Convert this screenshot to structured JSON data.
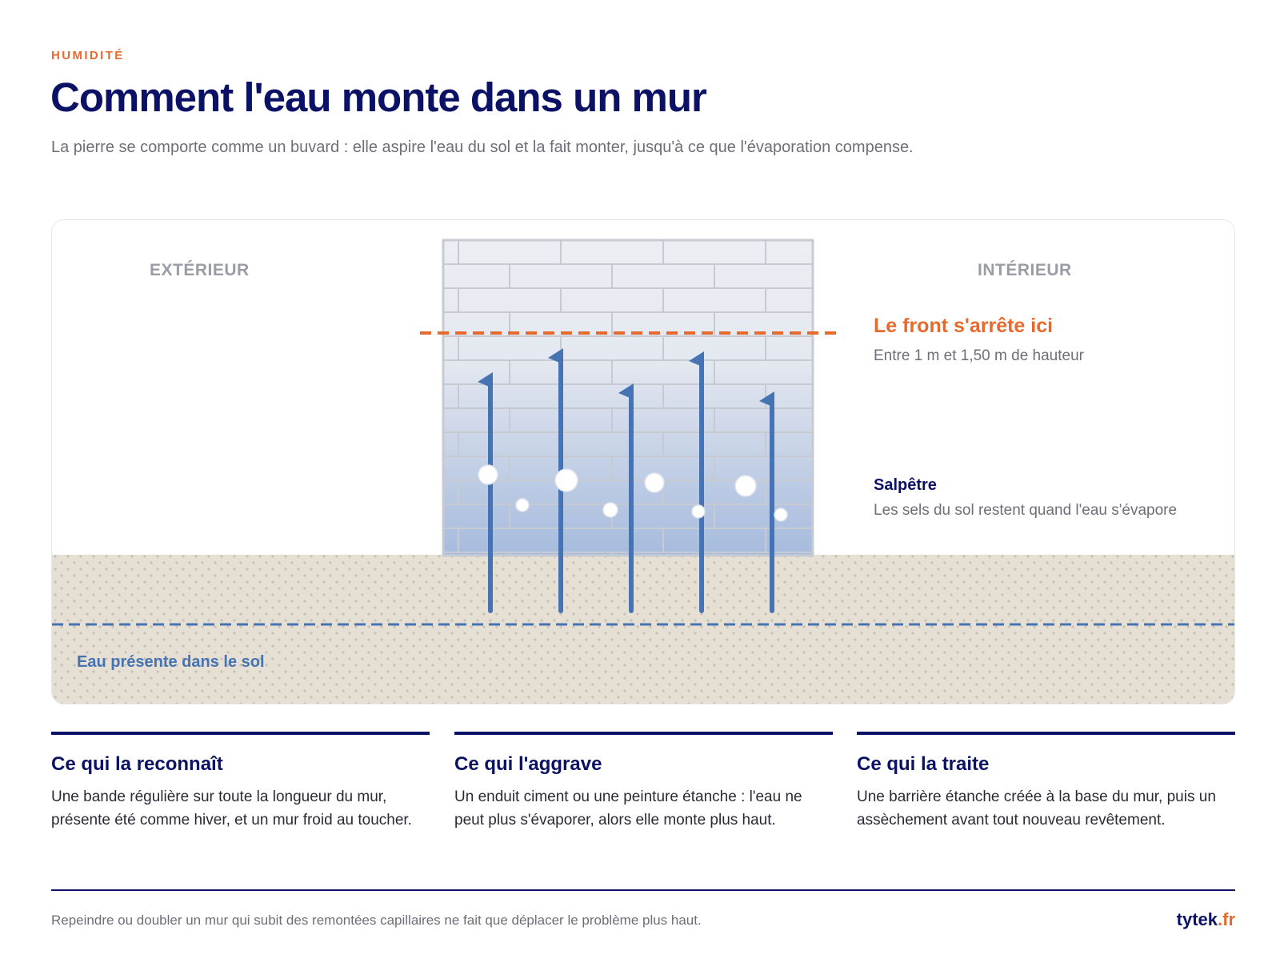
{
  "header": {
    "kicker": "HUMIDITÉ",
    "title": "Comment l'eau monte dans un mur",
    "subtitle": "La pierre se comporte comme un buvard : elle aspire l'eau du sol et la fait monter, jusqu'à ce que l'évaporation compense."
  },
  "diagram": {
    "exterior_label": "EXTÉRIEUR",
    "interior_label": "INTÉRIEUR",
    "front_title": "Le front s'arrête ici",
    "front_subtitle": "Entre 1 m et 1,50 m de hauteur",
    "salt_title": "Salpêtre",
    "salt_subtitle": "Les sels du sol restent quand l'eau s'évapore",
    "ground_water_label": "Eau présente dans le sol",
    "colors": {
      "front_line": "#e8692e",
      "water_arrow": "#4673b3",
      "ground": "#e6e0d4",
      "brick_line": "#c8cad2"
    }
  },
  "columns": [
    {
      "title": "Ce qui la reconnaît",
      "text": "Une bande régulière sur toute la longueur du mur, présente été comme hiver, et un mur froid au toucher."
    },
    {
      "title": "Ce qui l'aggrave",
      "text": "Un enduit ciment ou une peinture étanche : l'eau ne peut plus s'évaporer, alors elle monte plus haut."
    },
    {
      "title": "Ce qui la traite",
      "text": "Une barrière étanche créée à la base du mur, puis un assèchement avant tout nouveau revêtement."
    }
  ],
  "footer": {
    "note": "Repeindre ou doubler un mur qui subit des remontées capillaires ne fait que déplacer le problème plus haut.",
    "brand_name": "tytek",
    "brand_tld": ".fr"
  }
}
